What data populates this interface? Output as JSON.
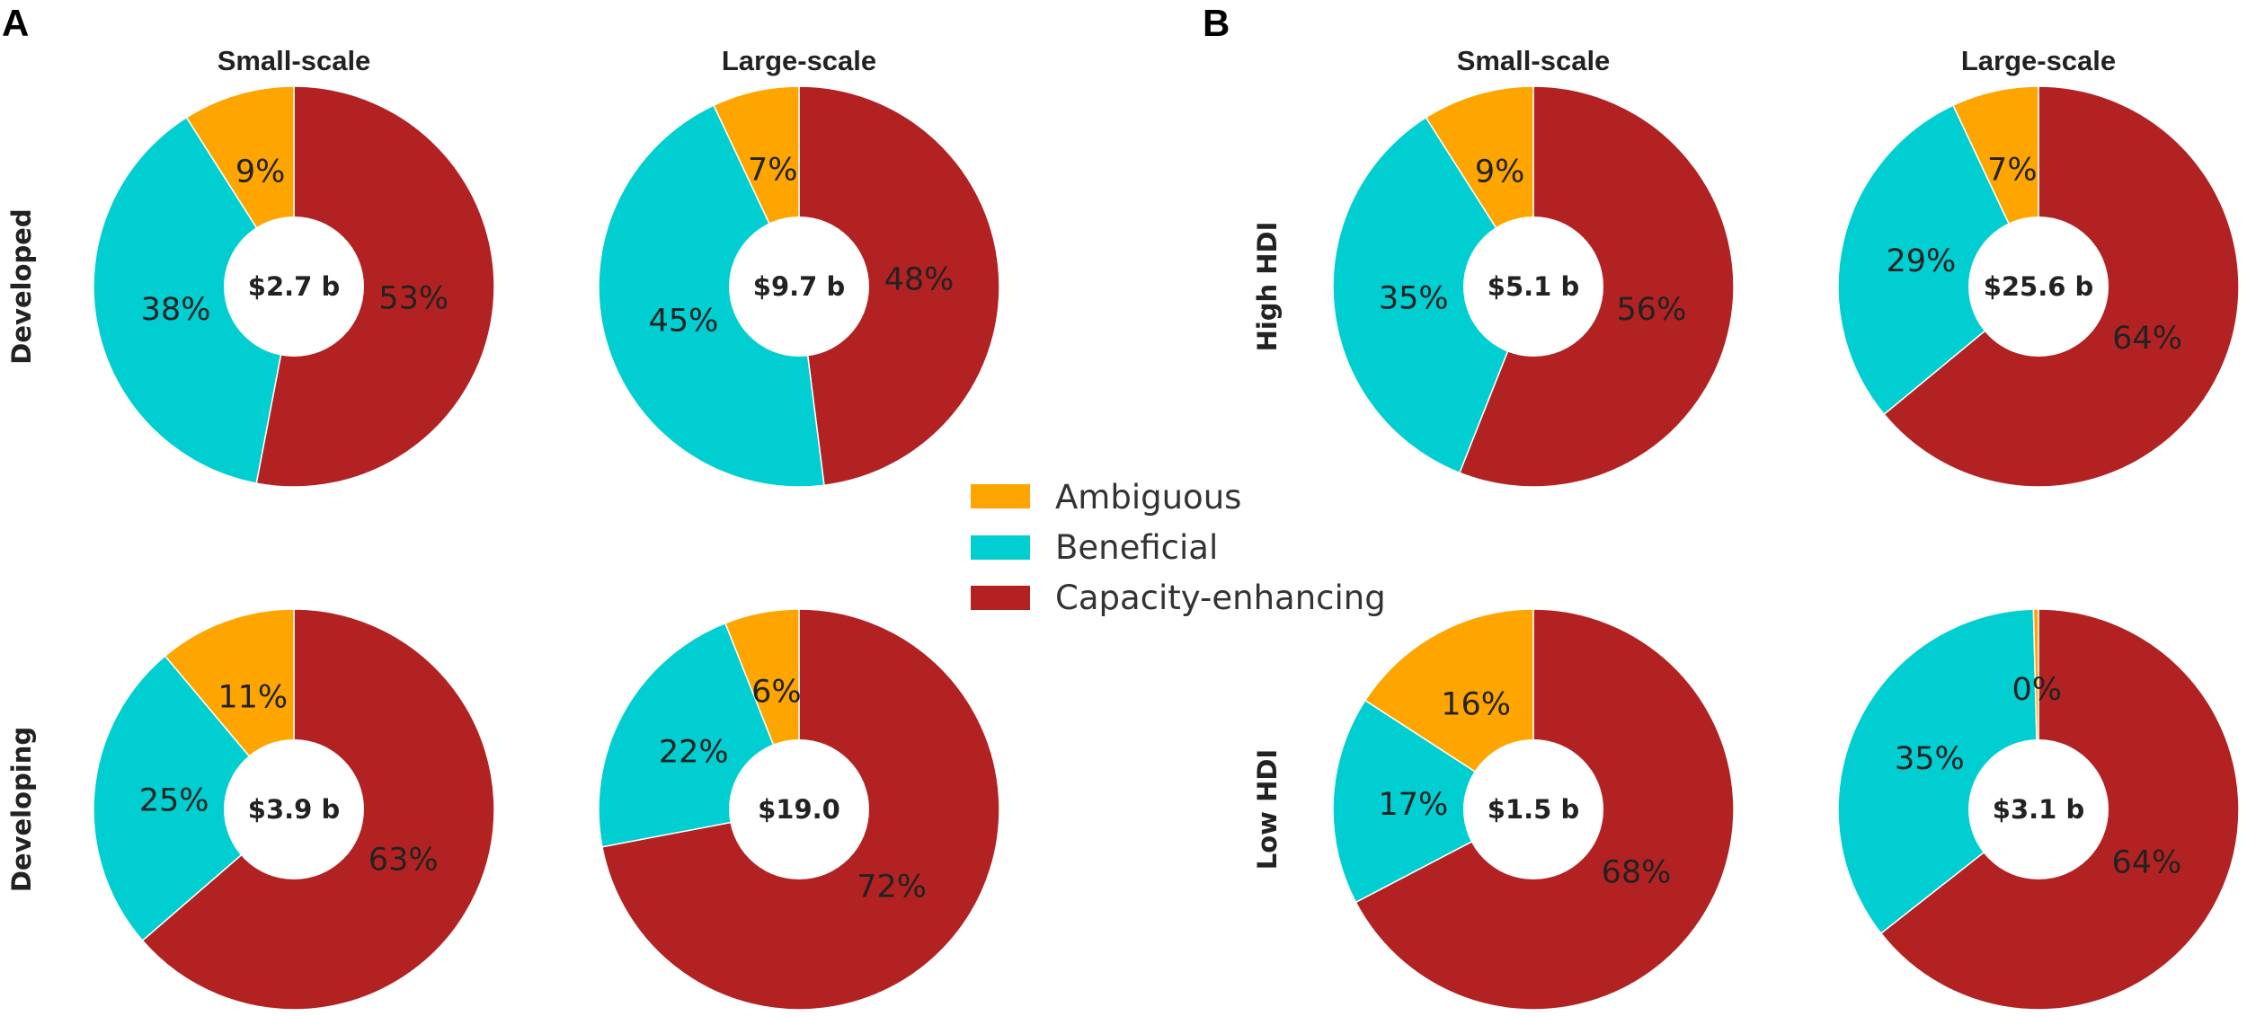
{
  "chart_data": {
    "type": "pie",
    "categories": [
      "Ambiguous",
      "Beneficial",
      "Capacity-enhancing"
    ],
    "colors": {
      "Ambiguous": "#FFA500",
      "Beneficial": "#00CED1",
      "Capacity-enhancing": "#B22222"
    },
    "legend": {
      "placement": "center",
      "entries": [
        "Ambiguous",
        "Beneficial",
        "Capacity-enhancing"
      ]
    },
    "panels": [
      {
        "letter": "A",
        "columns": [
          "Small-scale",
          "Large-scale"
        ],
        "rows": [
          "Developed",
          "Developing"
        ],
        "pies": [
          {
            "row": "Developed",
            "column": "Small-scale",
            "center_label": "$2.7 b",
            "values": {
              "Ambiguous": 9,
              "Beneficial": 38,
              "Capacity-enhancing": 53
            },
            "labels": {
              "Ambiguous": "9%",
              "Beneficial": "38%",
              "Capacity-enhancing": "53%"
            }
          },
          {
            "row": "Developed",
            "column": "Large-scale",
            "center_label": "$9.7 b",
            "values": {
              "Ambiguous": 7,
              "Beneficial": 45,
              "Capacity-enhancing": 48
            },
            "labels": {
              "Ambiguous": "7%",
              "Beneficial": "45%",
              "Capacity-enhancing": "48%"
            }
          },
          {
            "row": "Developing",
            "column": "Small-scale",
            "center_label": "$3.9 b",
            "values": {
              "Ambiguous": 11,
              "Beneficial": 25,
              "Capacity-enhancing": 63
            },
            "labels": {
              "Ambiguous": "11%",
              "Beneficial": "25%",
              "Capacity-enhancing": "63%"
            }
          },
          {
            "row": "Developing",
            "column": "Large-scale",
            "center_label": "$19.0",
            "values": {
              "Ambiguous": 6,
              "Beneficial": 22,
              "Capacity-enhancing": 72
            },
            "labels": {
              "Ambiguous": "6%",
              "Beneficial": "22%",
              "Capacity-enhancing": "72%"
            }
          }
        ]
      },
      {
        "letter": "B",
        "columns": [
          "Small-scale",
          "Large-scale"
        ],
        "rows": [
          "High HDI",
          "Low HDI"
        ],
        "pies": [
          {
            "row": "High HDI",
            "column": "Small-scale",
            "center_label": "$5.1 b",
            "values": {
              "Ambiguous": 9,
              "Beneficial": 35,
              "Capacity-enhancing": 56
            },
            "labels": {
              "Ambiguous": "9%",
              "Beneficial": "35%",
              "Capacity-enhancing": "56%"
            }
          },
          {
            "row": "High HDI",
            "column": "Large-scale",
            "center_label": "$25.6 b",
            "values": {
              "Ambiguous": 7,
              "Beneficial": 29,
              "Capacity-enhancing": 64
            },
            "labels": {
              "Ambiguous": "7%",
              "Beneficial": "29%",
              "Capacity-enhancing": "64%"
            }
          },
          {
            "row": "Low HDI",
            "column": "Small-scale",
            "center_label": "$1.5 b",
            "values": {
              "Ambiguous": 16,
              "Beneficial": 17,
              "Capacity-enhancing": 68
            },
            "labels": {
              "Ambiguous": "16%",
              "Beneficial": "17%",
              "Capacity-enhancing": "68%"
            }
          },
          {
            "row": "Low HDI",
            "column": "Large-scale",
            "center_label": "$3.1 b",
            "values": {
              "Ambiguous": 0.4,
              "Beneficial": 35,
              "Capacity-enhancing": 64
            },
            "labels": {
              "Ambiguous": "0%",
              "Beneficial": "35%",
              "Capacity-enhancing": "64%"
            }
          }
        ]
      }
    ]
  }
}
